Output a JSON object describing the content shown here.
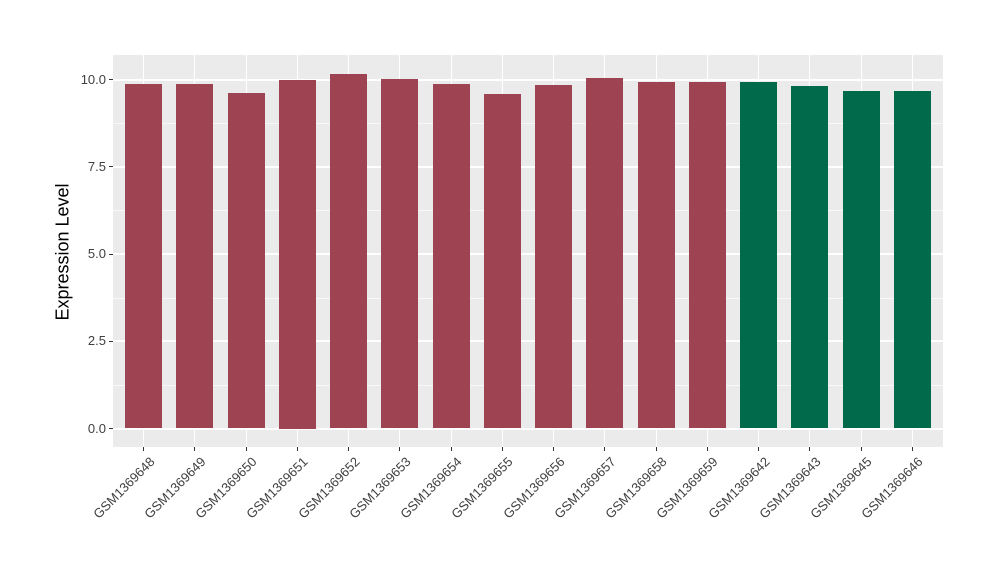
{
  "chart_data": {
    "type": "bar",
    "title": "",
    "xlabel": "",
    "ylabel": "Expression Level",
    "ytick_labels": [
      "0.0",
      "2.5",
      "5.0",
      "7.5",
      "10.0"
    ],
    "ytick_values": [
      0,
      2.5,
      5.0,
      7.5,
      10.0
    ],
    "minor_ytick_values": [
      1.25,
      3.75,
      6.25,
      8.75
    ],
    "ylim": [
      0,
      10.7
    ],
    "xtick_angle": 45,
    "legend_position": "none",
    "grid": "on",
    "panel_bg": "#EBEBEB",
    "grid_major_color": "#FFFFFF",
    "grid_minor_color": "rgba(255,255,255,0.65)",
    "axis_text_color": "#404040",
    "categories": [
      "GSM1369648",
      "GSM1369649",
      "GSM1369650",
      "GSM1369651",
      "GSM1369652",
      "GSM1369653",
      "GSM1369654",
      "GSM1369655",
      "GSM1369656",
      "GSM1369657",
      "GSM1369658",
      "GSM1369659",
      "GSM1369642",
      "GSM1369643",
      "GSM1369645",
      "GSM1369646"
    ],
    "values": [
      9.88,
      9.86,
      9.6,
      10.0,
      10.17,
      10.01,
      9.88,
      9.59,
      9.83,
      10.03,
      9.93,
      9.92,
      9.93,
      9.8,
      9.68,
      9.66
    ],
    "groups": [
      "group1",
      "group1",
      "group1",
      "group1",
      "group1",
      "group1",
      "group1",
      "group1",
      "group1",
      "group1",
      "group1",
      "group1",
      "group2",
      "group2",
      "group2",
      "group2"
    ],
    "group_colors": {
      "group1": "#9E4352",
      "group2": "#006A4B"
    }
  }
}
